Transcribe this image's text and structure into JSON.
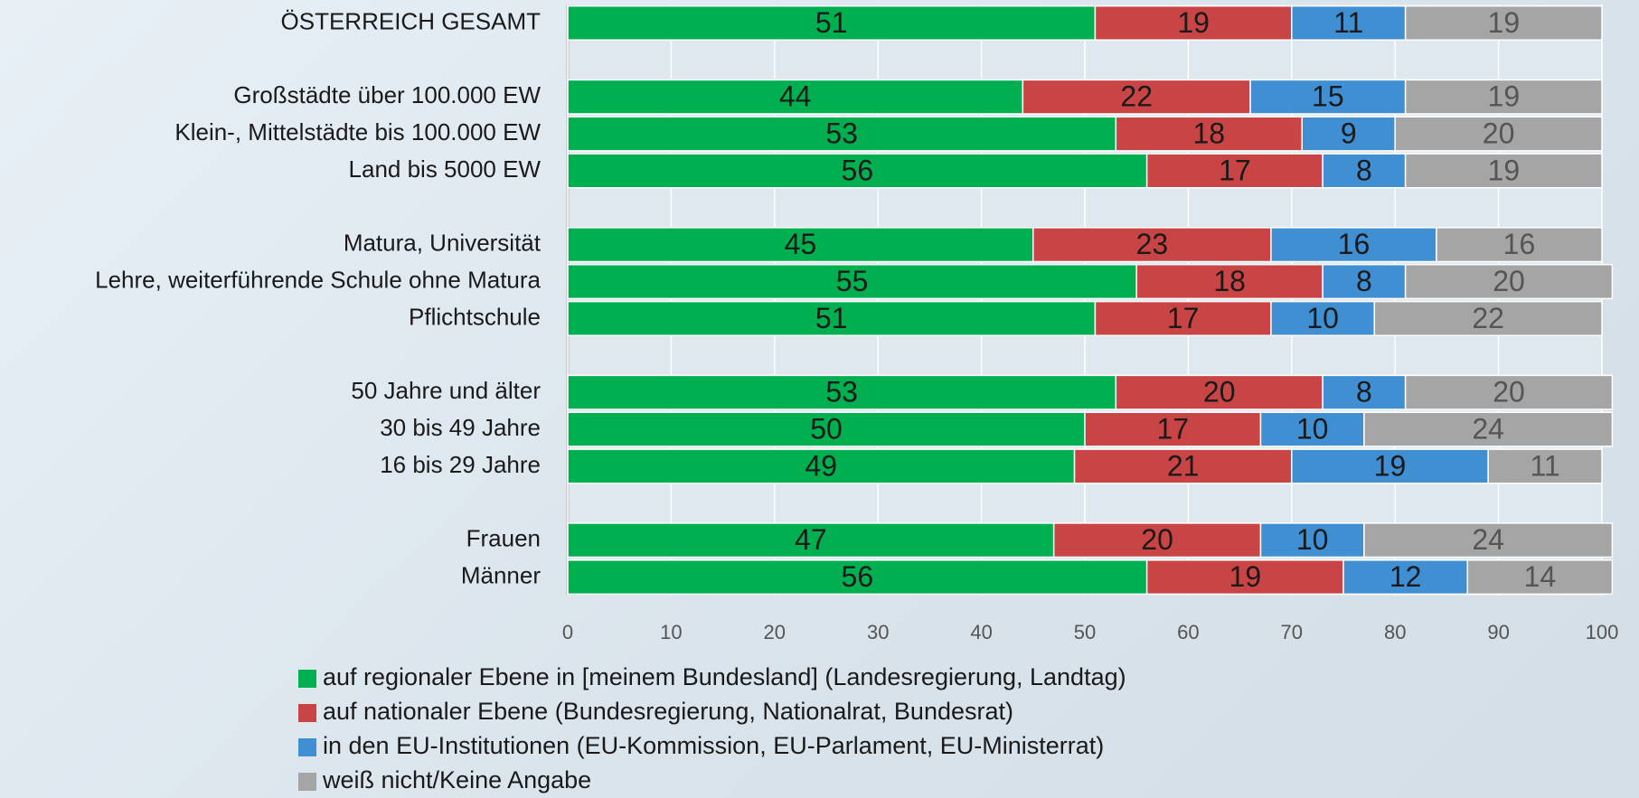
{
  "chart_data": {
    "type": "stacked-horizontal-bar",
    "categories": [
      "ÖSTERREICH GESAMT",
      null,
      "Großstädte über 100.000 EW",
      "Klein-, Mittelstädte bis 100.000 EW",
      "Land bis 5000 EW",
      null,
      "Matura, Universität",
      "Lehre, weiterführende Schule ohne Matura",
      "Pflichtschule",
      null,
      "50 Jahre und älter",
      "30 bis 49 Jahre",
      "16 bis 29 Jahre",
      null,
      "Frauen",
      "Männer"
    ],
    "series": [
      {
        "name": "auf regionaler Ebene in [meinem Bundesland] (Landesregierung, Landtag)",
        "color": "#00b050",
        "values": [
          51,
          null,
          44,
          53,
          56,
          null,
          45,
          55,
          51,
          null,
          53,
          50,
          49,
          null,
          47,
          56
        ]
      },
      {
        "name": "auf nationaler Ebene (Bundesregierung, Nationalrat, Bundesrat)",
        "color": "#c94444",
        "values": [
          19,
          null,
          22,
          18,
          17,
          null,
          23,
          18,
          17,
          null,
          20,
          17,
          21,
          null,
          20,
          19
        ]
      },
      {
        "name": "in den EU-Institutionen (EU-Kommission, EU-Parlament, EU-Ministerrat)",
        "color": "#3f8fd2",
        "values": [
          11,
          null,
          15,
          9,
          8,
          null,
          16,
          8,
          10,
          null,
          8,
          10,
          19,
          null,
          10,
          12
        ]
      },
      {
        "name": "weiß nicht/Keine Angabe",
        "color": "#a5a5a5",
        "values": [
          19,
          null,
          19,
          20,
          19,
          null,
          16,
          20,
          22,
          null,
          20,
          24,
          11,
          null,
          24,
          14
        ]
      }
    ],
    "xlim": [
      0,
      100
    ],
    "xticks": [
      0,
      10,
      20,
      30,
      40,
      50,
      60,
      70,
      80,
      90,
      100
    ],
    "grid": true,
    "legend": "bottom"
  }
}
